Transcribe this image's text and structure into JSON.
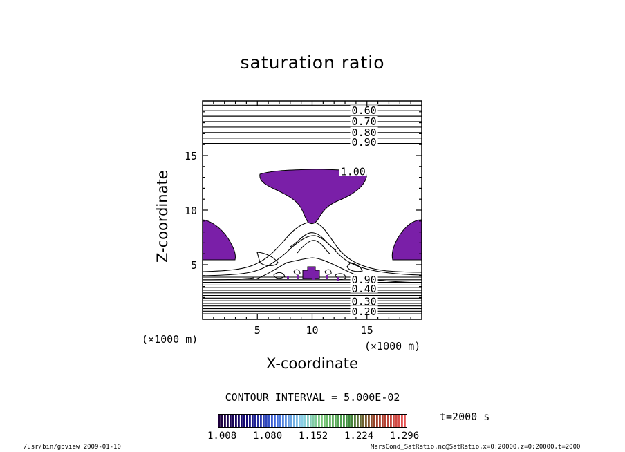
{
  "chart_data": {
    "type": "contour",
    "title": "saturation ratio",
    "xlabel": "X-coordinate",
    "ylabel": "Z-coordinate",
    "x_unit": "(×1000 m)",
    "y_unit": "(×1000 m)",
    "xlim": [
      0,
      20
    ],
    "ylim": [
      0,
      20
    ],
    "x_ticks": [
      5,
      10,
      15
    ],
    "y_ticks": [
      5,
      10,
      15
    ],
    "contour_labels": [
      {
        "value": "0.60",
        "x": 13.6,
        "z": 19.1
      },
      {
        "value": "0.70",
        "x": 13.6,
        "z": 18.1
      },
      {
        "value": "0.80",
        "x": 13.6,
        "z": 17.1
      },
      {
        "value": "0.90",
        "x": 13.6,
        "z": 16.2
      },
      {
        "value": "1.00",
        "x": 12.6,
        "z": 13.5
      },
      {
        "value": "0.90",
        "x": 13.6,
        "z": 3.6
      },
      {
        "value": "0.40",
        "x": 13.6,
        "z": 2.8
      },
      {
        "value": "0.30",
        "x": 13.6,
        "z": 1.6
      },
      {
        "value": "0.20",
        "x": 13.6,
        "z": 0.7
      }
    ],
    "upper_contour_levels": [
      0.6,
      0.65,
      0.7,
      0.75,
      0.8,
      0.85,
      0.9,
      0.95
    ],
    "lower_contour_levels": [
      0.2,
      0.25,
      0.3,
      0.35,
      0.4,
      0.45,
      0.5,
      0.55,
      0.6,
      0.65,
      0.7,
      0.75,
      0.8,
      0.85,
      0.9
    ],
    "shade_color": "#7a1fa8",
    "contour_interval": "CONTOUR INTERVAL = 5.000E-02",
    "colorbar": {
      "ticks": [
        "1.008",
        "1.080",
        "1.152",
        "1.224",
        "1.296"
      ]
    },
    "time": "t=2000 s"
  },
  "footer": {
    "left": "/usr/bin/gpview   2009-01-10",
    "right": "MarsCond_SatRatio.nc@SatRatio,x=0:20000,z=0:20000,t=2000"
  }
}
